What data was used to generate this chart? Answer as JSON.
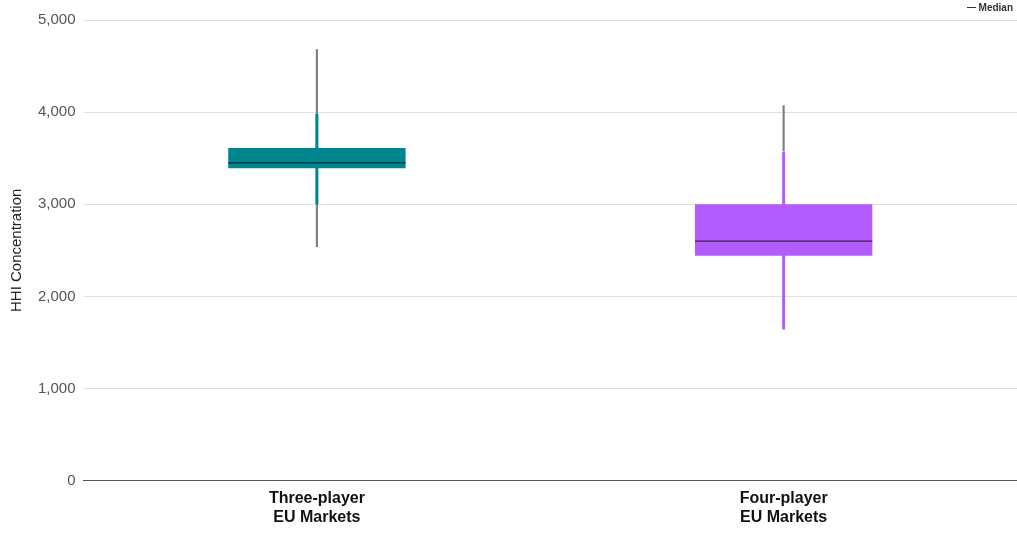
{
  "chart_data": {
    "type": "box",
    "ylabel": "HHI Concentration",
    "categories": [
      "Three-player EU Markets",
      "Four-player EU Markets"
    ],
    "series": [
      {
        "type": "bar",
        "color": "#7f7f7f",
        "base": [
          2540,
          3580
        ],
        "values": [
          2140,
          490
        ]
      },
      {
        "type": "box",
        "colors": [
          "#00868f",
          "#b05cff"
        ],
        "boxes": [
          {
            "low": 3000,
            "q1": 3390,
            "median": 3450,
            "q3": 3610,
            "high": 3980
          },
          {
            "low": 1640,
            "q1": 2440,
            "median": 2600,
            "q3": 3000,
            "high": 3570
          }
        ]
      }
    ],
    "ylim": [
      0,
      5000
    ],
    "yticks": [
      {
        "value": 0,
        "label": "0"
      },
      {
        "value": 1000,
        "label": "1,000"
      },
      {
        "value": 2000,
        "label": "2,000"
      },
      {
        "value": 3000,
        "label": "3,000"
      },
      {
        "value": 4000,
        "label": "4,000"
      },
      {
        "value": 5000,
        "label": "5,000"
      }
    ],
    "grid": "y",
    "annotations": [
      "Median"
    ]
  }
}
